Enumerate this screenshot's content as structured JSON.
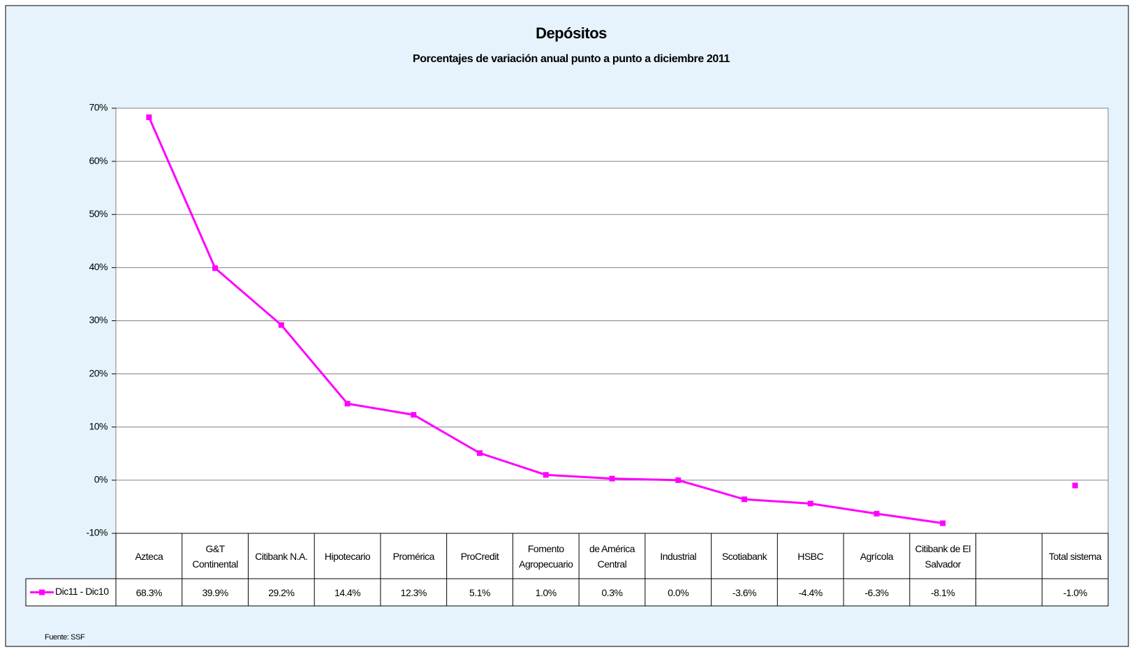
{
  "chart_data": {
    "type": "line",
    "title": "Depósitos",
    "subtitle": "Porcentajes de variación anual punto a punto a diciembre 2011",
    "categories": [
      "Azteca",
      "G&T Continental",
      "Citibank N.A.",
      "Hipotecario",
      "Promérica",
      "ProCredit",
      "Fomento Agropecuario",
      "de América Central",
      "Industrial",
      "Scotiabank",
      "HSBC",
      "Agrícola",
      "Citibank de El Salvador",
      null,
      "Total sistema"
    ],
    "series": [
      {
        "name": "Dic11 - Dic10",
        "color": "#ff00ff",
        "values": [
          68.3,
          39.9,
          29.2,
          14.4,
          12.3,
          5.1,
          1.0,
          0.3,
          0.0,
          -3.6,
          -4.4,
          -6.3,
          -8.1,
          null,
          -1.0
        ],
        "value_labels": [
          "68.3%",
          "39.9%",
          "29.2%",
          "14.4%",
          "12.3%",
          "5.1%",
          "1.0%",
          "0.3%",
          "0.0%",
          "-3.6%",
          "-4.4%",
          "-6.3%",
          "-8.1%",
          null,
          "-1.0%"
        ]
      }
    ],
    "ylim": [
      -10,
      70
    ],
    "yticks": [
      {
        "value": -10,
        "label": "-10%"
      },
      {
        "value": 0,
        "label": "0%"
      },
      {
        "value": 10,
        "label": "10%"
      },
      {
        "value": 20,
        "label": "20%"
      },
      {
        "value": 30,
        "label": "30%"
      },
      {
        "value": 40,
        "label": "40%"
      },
      {
        "value": 50,
        "label": "50%"
      },
      {
        "value": 60,
        "label": "60%"
      },
      {
        "value": 70,
        "label": "70%"
      }
    ],
    "grid": true,
    "source": "Fuente: SSF"
  }
}
